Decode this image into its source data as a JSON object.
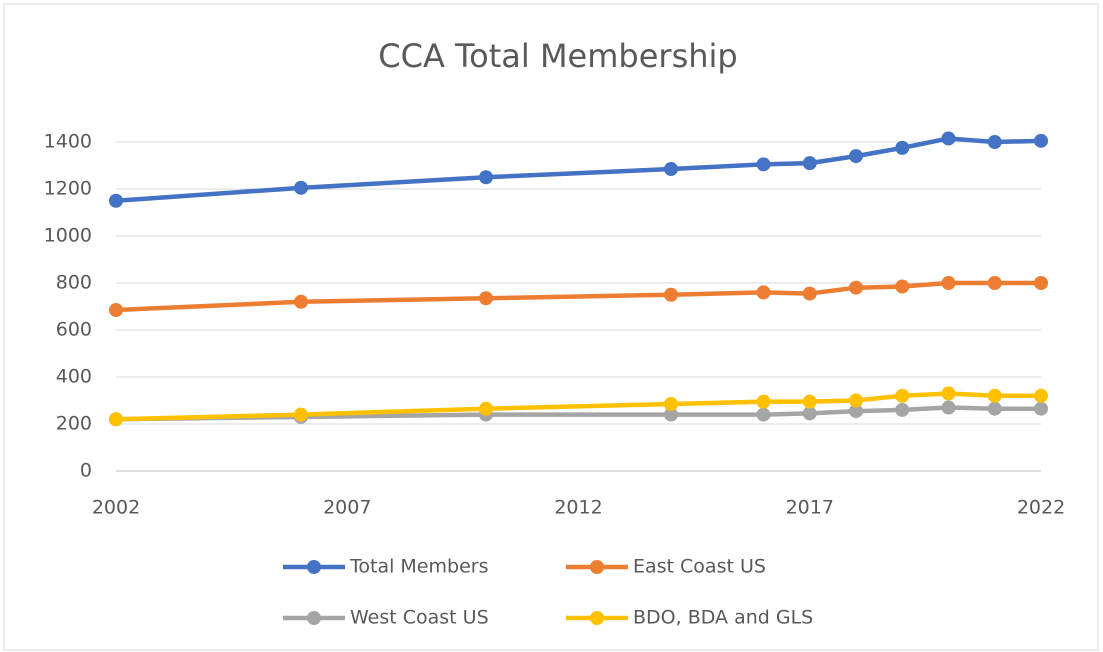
{
  "chart_data": {
    "type": "line",
    "title": "CCA Total Membership",
    "x": [
      2002,
      2006,
      2010,
      2014,
      2016,
      2017,
      2018,
      2019,
      2020,
      2021,
      2022
    ],
    "xlim": [
      2002,
      2022
    ],
    "xticks": [
      2002,
      2007,
      2012,
      2017,
      2022
    ],
    "ylim": [
      0,
      1400
    ],
    "yticks": [
      0,
      200,
      400,
      600,
      800,
      1000,
      1200,
      1400
    ],
    "grid": true,
    "legend": "bottom",
    "series": [
      {
        "name": "Total Members",
        "color": "#4472c4",
        "values": [
          1150,
          1205,
          1250,
          1285,
          1305,
          1310,
          1340,
          1375,
          1415,
          1400,
          1405
        ]
      },
      {
        "name": "East Coast US",
        "color": "#ed7d31",
        "values": [
          685,
          720,
          735,
          750,
          760,
          755,
          780,
          785,
          800,
          800,
          800
        ]
      },
      {
        "name": "West Coast US",
        "color": "#a5a5a5",
        "values": [
          220,
          230,
          240,
          240,
          240,
          245,
          255,
          260,
          270,
          265,
          265
        ]
      },
      {
        "name": "BDO, BDA and GLS",
        "color": "#ffc000",
        "values": [
          220,
          240,
          265,
          285,
          295,
          295,
          300,
          320,
          330,
          320,
          320
        ]
      }
    ]
  }
}
